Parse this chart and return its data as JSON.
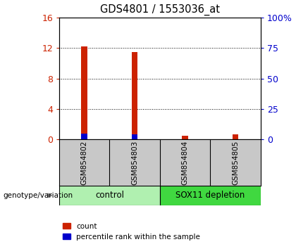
{
  "title": "GDS4801 / 1553036_at",
  "samples": [
    "GSM854802",
    "GSM854803",
    "GSM854804",
    "GSM854805"
  ],
  "count_values": [
    12.2,
    11.5,
    0.5,
    0.7
  ],
  "percentile_values": [
    5.0,
    4.4,
    0.2,
    0.35
  ],
  "left_ylim": [
    0,
    16
  ],
  "right_ylim": [
    0,
    100
  ],
  "left_yticks": [
    0,
    4,
    8,
    12,
    16
  ],
  "right_yticks": [
    0,
    25,
    50,
    75,
    100
  ],
  "right_yticklabels": [
    "0",
    "25",
    "50",
    "75",
    "100%"
  ],
  "bar_color": "#cc2200",
  "percentile_color": "#0000cc",
  "bar_width": 0.12,
  "groups": [
    {
      "label": "control",
      "color": "#b0f0b0"
    },
    {
      "label": "SOX11 depletion",
      "color": "#40d840"
    }
  ],
  "legend_count_label": "count",
  "legend_percentile_label": "percentile rank within the sample",
  "genotype_label": "genotype/variation",
  "background_color": "#ffffff",
  "plot_bg_color": "#ffffff",
  "sample_area_color": "#c8c8c8",
  "left_tick_color": "#cc2200",
  "right_tick_color": "#0000cc",
  "dotted_grid_color": "#000000"
}
